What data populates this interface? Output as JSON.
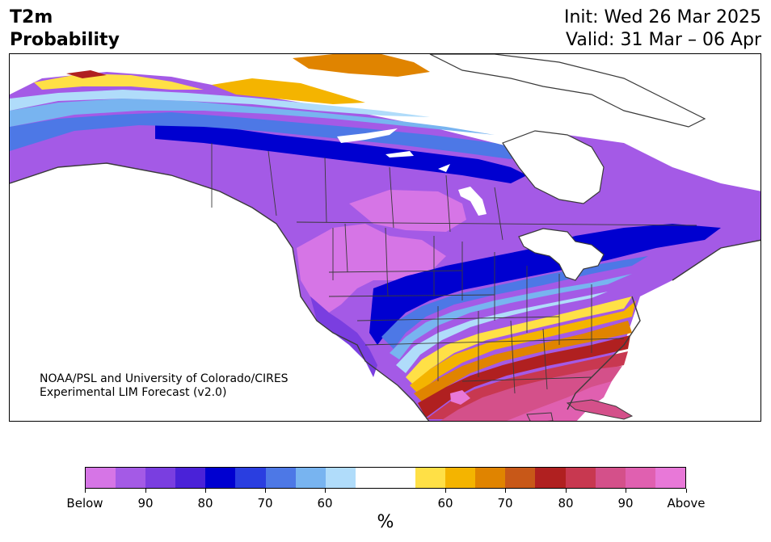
{
  "header": {
    "title_line1": "T2m",
    "title_line2": "Probability",
    "init": "Init: Wed 26 Mar 2025",
    "valid": "Valid: 31 Mar – 06 Apr"
  },
  "credit": {
    "line1": "NOAA/PSL and University of Colorado/CIRES",
    "line2": "Experimental LIM Forecast (v2.0)"
  },
  "colorbar": {
    "colors": [
      "#d675e6",
      "#a45ae6",
      "#7a3ee0",
      "#4a22d8",
      "#0000d0",
      "#2a3ee0",
      "#4d78e6",
      "#78b4f0",
      "#b0dcfa",
      "#ffffff",
      "#ffffff",
      "#ffe046",
      "#f4b400",
      "#e08400",
      "#c85818",
      "#b02020",
      "#c83850",
      "#d4508a",
      "#e060b0",
      "#e878d8"
    ],
    "labels": [
      "Below",
      "90",
      "80",
      "70",
      "60",
      "60",
      "70",
      "80",
      "90",
      "Above"
    ],
    "unit": "%"
  },
  "map": {
    "colors": {
      "below_strong": "#d675e6",
      "below_mid": "#a45ae6",
      "below_70": "#7a3ee0",
      "below_deep": "#0000d0",
      "below_blue": "#4d78e6",
      "below_light": "#78b4f0",
      "below_pale": "#b0dcfa",
      "above_yellow": "#ffe046",
      "above_gold": "#f4b400",
      "above_orange": "#e08400",
      "above_red": "#b02020",
      "above_rose": "#c83850",
      "above_pink": "#d4508a",
      "above_magenta": "#e060b0",
      "above_light": "#e878d8",
      "border": "#3a3a3a"
    }
  }
}
